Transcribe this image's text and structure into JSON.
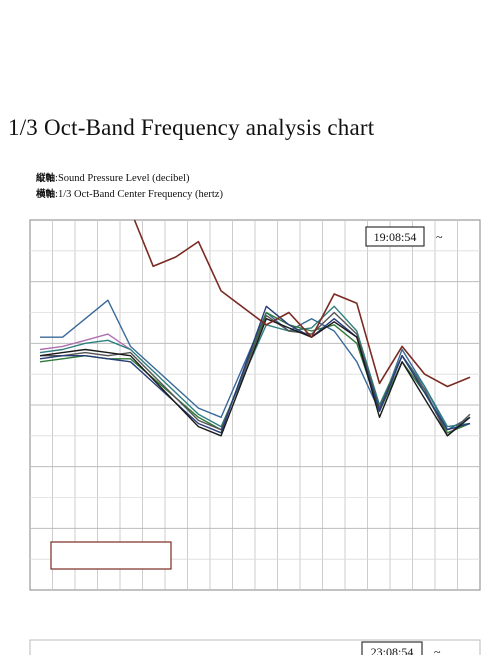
{
  "page": {
    "title": "1/3 Oct-Band Frequency analysis chart",
    "legend_lines": [
      {
        "prefix": "縦軸",
        "sep": ":",
        "text": "Sound Pressure Level (decibel)"
      },
      {
        "prefix": "横軸",
        "sep": ":",
        "text": "1/3 Oct-Band Center Frequency (hertz)"
      }
    ],
    "time_box_1": "19:08:54",
    "time_suffix": "~",
    "time_box_2": "23:08:54",
    "annotation_line1": "",
    "annotation_line2": ""
  },
  "chart_data": {
    "type": "line",
    "title": "",
    "xlabel": "",
    "ylabel": "",
    "y_tick_labels": [
      "",
      "",
      "",
      "",
      "",
      "",
      ""
    ],
    "y_ticks": [
      70,
      60,
      50,
      40,
      30,
      20,
      10
    ],
    "ylim": [
      10,
      70
    ],
    "x": [
      1,
      2,
      3,
      4,
      5,
      6,
      7,
      8,
      9,
      10,
      11,
      12,
      13,
      14,
      15,
      16,
      17,
      18,
      19,
      20
    ],
    "grid": true,
    "colors": {
      "red": "#7a2a22",
      "blue": "#3a6a9a",
      "purple": "#b070b0",
      "black": "#1a1a1a",
      "navy": "#283c78",
      "teal": "#2f7f7f",
      "green": "#2f7a3a",
      "gray": "#555555"
    },
    "series": [
      {
        "color": "red",
        "values": [
          null,
          null,
          null,
          null,
          74,
          62.5,
          64,
          66.5,
          58.5,
          null,
          53,
          55,
          51,
          58,
          56.5,
          43.5,
          49.5,
          45,
          43,
          44.5
        ]
      },
      {
        "color": "blue",
        "values": [
          51,
          51,
          54,
          57,
          49.5,
          null,
          null,
          39.5,
          38,
          null,
          55,
          52,
          54,
          52,
          47,
          39,
          49,
          43,
          36,
          38
        ]
      },
      {
        "color": "purple",
        "values": [
          49,
          49.5,
          50.5,
          51.5,
          49,
          null,
          null,
          null,
          null,
          null,
          null,
          null,
          null,
          null,
          null,
          null,
          null,
          null,
          null,
          null
        ]
      },
      {
        "color": "black",
        "values": [
          48,
          48.5,
          49,
          48.5,
          48,
          null,
          null,
          36.5,
          35,
          null,
          54,
          52.5,
          51,
          53.5,
          51,
          38,
          47,
          41,
          35,
          38
        ]
      },
      {
        "color": "navy",
        "values": [
          47.5,
          48,
          48,
          47.5,
          47,
          null,
          null,
          37,
          35.5,
          null,
          56,
          53,
          51,
          54,
          51,
          39,
          48,
          42,
          36,
          37
        ]
      },
      {
        "color": "teal",
        "values": [
          48.5,
          49,
          50,
          50.5,
          49,
          null,
          null,
          38.5,
          36.5,
          null,
          53,
          52,
          52.5,
          56,
          52,
          40,
          48,
          43,
          36.5,
          37
        ]
      },
      {
        "color": "green",
        "values": [
          47,
          47.5,
          48,
          47.5,
          47.5,
          null,
          null,
          38,
          36,
          null,
          55,
          53,
          52,
          53,
          50,
          39,
          47,
          42,
          35.5,
          37
        ]
      },
      {
        "color": "gray",
        "values": [
          48,
          48,
          48.5,
          48,
          48.5,
          null,
          null,
          37.5,
          36,
          null,
          54.5,
          52,
          51.5,
          55,
          51.5,
          39.5,
          48,
          42.5,
          35,
          38.5
        ]
      }
    ]
  }
}
